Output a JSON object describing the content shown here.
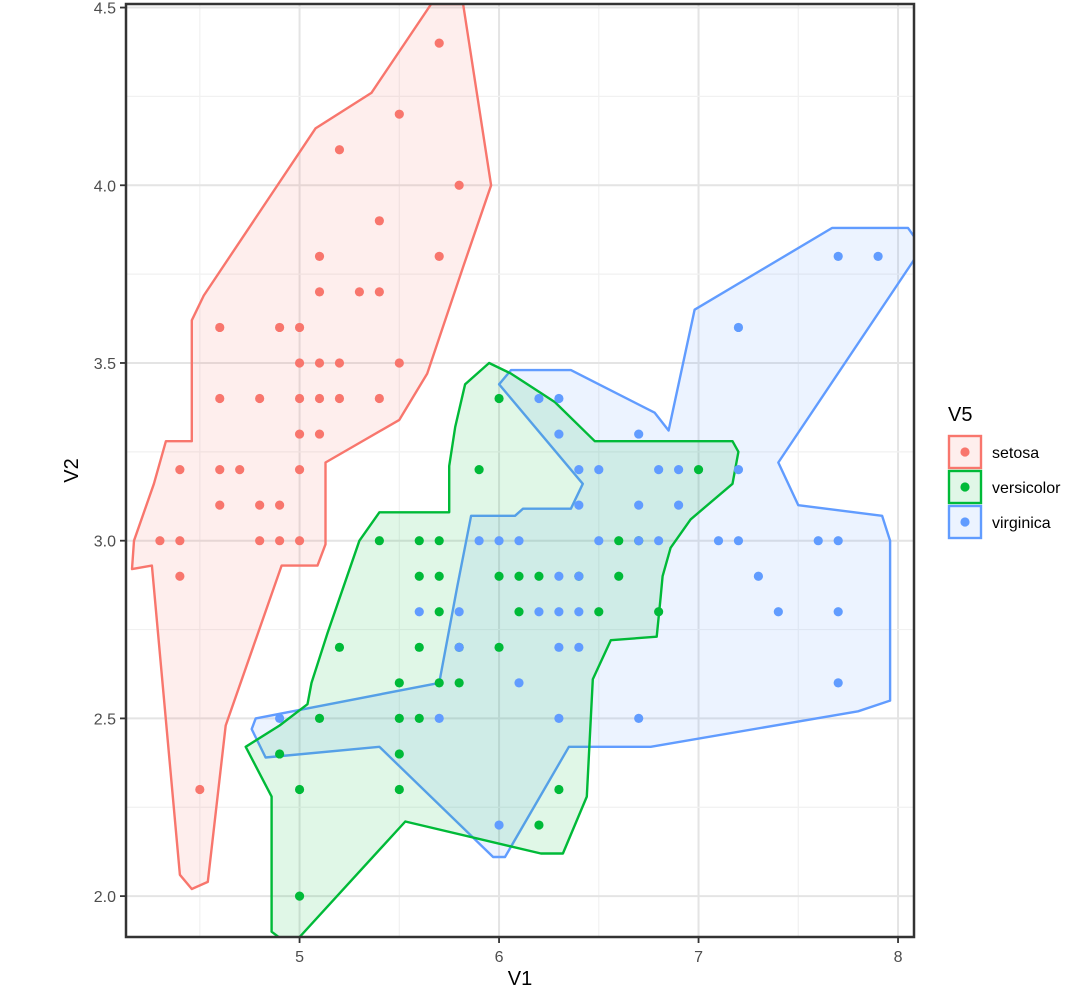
{
  "chart_data": {
    "type": "scatter",
    "title": "",
    "xlabel": "V1",
    "ylabel": "V2",
    "xlim": [
      4.13,
      8.08
    ],
    "ylim": [
      1.885,
      4.51
    ],
    "x_ticks": [
      5,
      6,
      7,
      8
    ],
    "y_ticks": [
      2.0,
      2.5,
      3.0,
      3.5,
      4.0,
      4.5
    ],
    "x_tick_labels": [
      "5",
      "6",
      "7",
      "8"
    ],
    "y_tick_labels": [
      "2.0",
      "2.5",
      "3.0",
      "3.5",
      "4.0",
      "4.5"
    ],
    "grid": true,
    "legend": {
      "title": "V5",
      "position": "right"
    },
    "hull": "expanded convex hull around each group, semi-transparent fill",
    "series": [
      {
        "name": "setosa",
        "color": "#F8766D",
        "fill": "#FDE8E6",
        "points": [
          [
            5.7,
            4.4
          ],
          [
            5.5,
            4.2
          ],
          [
            5.2,
            4.1
          ],
          [
            5.8,
            4.0
          ],
          [
            5.4,
            3.9
          ],
          [
            5.1,
            3.8
          ],
          [
            5.7,
            3.8
          ],
          [
            5.1,
            3.7
          ],
          [
            5.3,
            3.7
          ],
          [
            5.4,
            3.7
          ],
          [
            4.6,
            3.6
          ],
          [
            4.9,
            3.6
          ],
          [
            5.0,
            3.6
          ],
          [
            5.0,
            3.5
          ],
          [
            5.1,
            3.5
          ],
          [
            5.2,
            3.5
          ],
          [
            5.5,
            3.5
          ],
          [
            4.6,
            3.4
          ],
          [
            4.8,
            3.4
          ],
          [
            5.0,
            3.4
          ],
          [
            5.1,
            3.4
          ],
          [
            5.2,
            3.4
          ],
          [
            5.4,
            3.4
          ],
          [
            5.0,
            3.3
          ],
          [
            5.1,
            3.3
          ],
          [
            4.4,
            3.2
          ],
          [
            4.6,
            3.2
          ],
          [
            4.7,
            3.2
          ],
          [
            5.0,
            3.2
          ],
          [
            4.6,
            3.1
          ],
          [
            4.8,
            3.1
          ],
          [
            4.9,
            3.1
          ],
          [
            4.3,
            3.0
          ],
          [
            4.4,
            3.0
          ],
          [
            4.8,
            3.0
          ],
          [
            4.9,
            3.0
          ],
          [
            5.0,
            3.0
          ],
          [
            4.4,
            2.9
          ],
          [
            4.5,
            2.3
          ]
        ],
        "hull": [
          [
            5.66,
            4.51
          ],
          [
            5.82,
            4.51
          ],
          [
            5.96,
            4.0
          ],
          [
            5.82,
            3.77
          ],
          [
            5.64,
            3.47
          ],
          [
            5.5,
            3.34
          ],
          [
            5.13,
            3.22
          ],
          [
            5.13,
            2.99
          ],
          [
            5.09,
            2.93
          ],
          [
            4.91,
            2.93
          ],
          [
            4.63,
            2.48
          ],
          [
            4.54,
            2.04
          ],
          [
            4.46,
            2.02
          ],
          [
            4.4,
            2.06
          ],
          [
            4.26,
            2.93
          ],
          [
            4.16,
            2.92
          ],
          [
            4.17,
            3.0
          ],
          [
            4.27,
            3.16
          ],
          [
            4.33,
            3.28
          ],
          [
            4.46,
            3.28
          ],
          [
            4.46,
            3.62
          ],
          [
            4.52,
            3.69
          ],
          [
            5.08,
            4.16
          ],
          [
            5.36,
            4.26
          ]
        ]
      },
      {
        "name": "versicolor",
        "color": "#00BA38",
        "fill": "#E0F5E5",
        "points": [
          [
            6.0,
            3.4
          ],
          [
            5.9,
            3.2
          ],
          [
            7.0,
            3.2
          ],
          [
            5.4,
            3.0
          ],
          [
            5.6,
            3.0
          ],
          [
            5.7,
            3.0
          ],
          [
            6.6,
            3.0
          ],
          [
            6.7,
            3.0
          ],
          [
            5.6,
            2.9
          ],
          [
            5.7,
            2.9
          ],
          [
            6.0,
            2.9
          ],
          [
            6.1,
            2.9
          ],
          [
            6.2,
            2.9
          ],
          [
            6.4,
            2.9
          ],
          [
            6.6,
            2.9
          ],
          [
            5.7,
            2.8
          ],
          [
            6.1,
            2.8
          ],
          [
            6.5,
            2.8
          ],
          [
            6.8,
            2.8
          ],
          [
            5.2,
            2.7
          ],
          [
            5.6,
            2.7
          ],
          [
            5.8,
            2.7
          ],
          [
            6.0,
            2.7
          ],
          [
            5.5,
            2.6
          ],
          [
            5.7,
            2.6
          ],
          [
            5.8,
            2.6
          ],
          [
            5.1,
            2.5
          ],
          [
            5.5,
            2.5
          ],
          [
            5.6,
            2.5
          ],
          [
            5.5,
            2.4
          ],
          [
            4.9,
            2.4
          ],
          [
            5.0,
            2.3
          ],
          [
            5.5,
            2.3
          ],
          [
            6.3,
            2.3
          ],
          [
            6.2,
            2.2
          ],
          [
            5.0,
            2.0
          ]
        ],
        "hull": [
          [
            5.95,
            3.5
          ],
          [
            6.06,
            3.47
          ],
          [
            6.28,
            3.39
          ],
          [
            6.48,
            3.28
          ],
          [
            7.17,
            3.28
          ],
          [
            7.2,
            3.25
          ],
          [
            7.17,
            3.16
          ],
          [
            6.96,
            3.06
          ],
          [
            6.86,
            2.98
          ],
          [
            6.82,
            2.9
          ],
          [
            6.81,
            2.84
          ],
          [
            6.79,
            2.73
          ],
          [
            6.56,
            2.72
          ],
          [
            6.47,
            2.61
          ],
          [
            6.44,
            2.28
          ],
          [
            6.32,
            2.12
          ],
          [
            6.21,
            2.12
          ],
          [
            5.53,
            2.21
          ],
          [
            5.0,
            1.885
          ],
          [
            4.98,
            1.865
          ],
          [
            4.93,
            1.87
          ],
          [
            4.86,
            1.9
          ],
          [
            4.86,
            2.28
          ],
          [
            4.73,
            2.42
          ],
          [
            4.9,
            2.48
          ],
          [
            5.04,
            2.54
          ],
          [
            5.06,
            2.6
          ],
          [
            5.14,
            2.74
          ],
          [
            5.3,
            3.0
          ],
          [
            5.4,
            3.08
          ],
          [
            5.75,
            3.08
          ],
          [
            5.75,
            3.21
          ],
          [
            5.78,
            3.32
          ],
          [
            5.83,
            3.44
          ]
        ]
      },
      {
        "name": "virginica",
        "color": "#619CFF",
        "fill": "#E6EFFE",
        "points": [
          [
            7.7,
            3.8
          ],
          [
            7.9,
            3.8
          ],
          [
            7.2,
            3.6
          ],
          [
            6.2,
            3.4
          ],
          [
            6.3,
            3.4
          ],
          [
            6.3,
            3.3
          ],
          [
            6.7,
            3.3
          ],
          [
            6.4,
            3.2
          ],
          [
            6.5,
            3.2
          ],
          [
            6.8,
            3.2
          ],
          [
            6.9,
            3.2
          ],
          [
            7.2,
            3.2
          ],
          [
            6.4,
            3.1
          ],
          [
            6.7,
            3.1
          ],
          [
            6.9,
            3.1
          ],
          [
            5.9,
            3.0
          ],
          [
            6.0,
            3.0
          ],
          [
            6.1,
            3.0
          ],
          [
            6.5,
            3.0
          ],
          [
            6.7,
            3.0
          ],
          [
            6.8,
            3.0
          ],
          [
            7.1,
            3.0
          ],
          [
            7.2,
            3.0
          ],
          [
            7.6,
            3.0
          ],
          [
            7.7,
            3.0
          ],
          [
            6.3,
            2.9
          ],
          [
            6.4,
            2.9
          ],
          [
            7.3,
            2.9
          ],
          [
            5.6,
            2.8
          ],
          [
            5.8,
            2.8
          ],
          [
            6.2,
            2.8
          ],
          [
            6.3,
            2.8
          ],
          [
            6.4,
            2.8
          ],
          [
            7.4,
            2.8
          ],
          [
            7.7,
            2.8
          ],
          [
            5.8,
            2.7
          ],
          [
            6.3,
            2.7
          ],
          [
            6.4,
            2.7
          ],
          [
            6.1,
            2.6
          ],
          [
            7.7,
            2.6
          ],
          [
            4.9,
            2.5
          ],
          [
            5.7,
            2.5
          ],
          [
            6.3,
            2.5
          ],
          [
            6.7,
            2.5
          ],
          [
            6.0,
            2.2
          ]
        ],
        "hull": [
          [
            7.67,
            3.88
          ],
          [
            8.05,
            3.88
          ],
          [
            8.1,
            3.84
          ],
          [
            8.08,
            3.79
          ],
          [
            7.4,
            3.22
          ],
          [
            7.5,
            3.1
          ],
          [
            7.92,
            3.07
          ],
          [
            7.96,
            3.0
          ],
          [
            7.96,
            2.55
          ],
          [
            7.8,
            2.52
          ],
          [
            6.76,
            2.42
          ],
          [
            6.35,
            2.42
          ],
          [
            6.03,
            2.11
          ],
          [
            5.97,
            2.11
          ],
          [
            5.4,
            2.42
          ],
          [
            4.83,
            2.39
          ],
          [
            4.76,
            2.47
          ],
          [
            4.78,
            2.5
          ],
          [
            5.7,
            2.6
          ],
          [
            5.79,
            2.87
          ],
          [
            5.86,
            3.07
          ],
          [
            6.08,
            3.07
          ],
          [
            6.12,
            3.09
          ],
          [
            6.36,
            3.09
          ],
          [
            6.42,
            3.16
          ],
          [
            6.0,
            3.44
          ],
          [
            6.06,
            3.48
          ],
          [
            6.36,
            3.48
          ],
          [
            6.78,
            3.36
          ],
          [
            6.85,
            3.31
          ],
          [
            6.98,
            3.65
          ]
        ]
      }
    ]
  }
}
